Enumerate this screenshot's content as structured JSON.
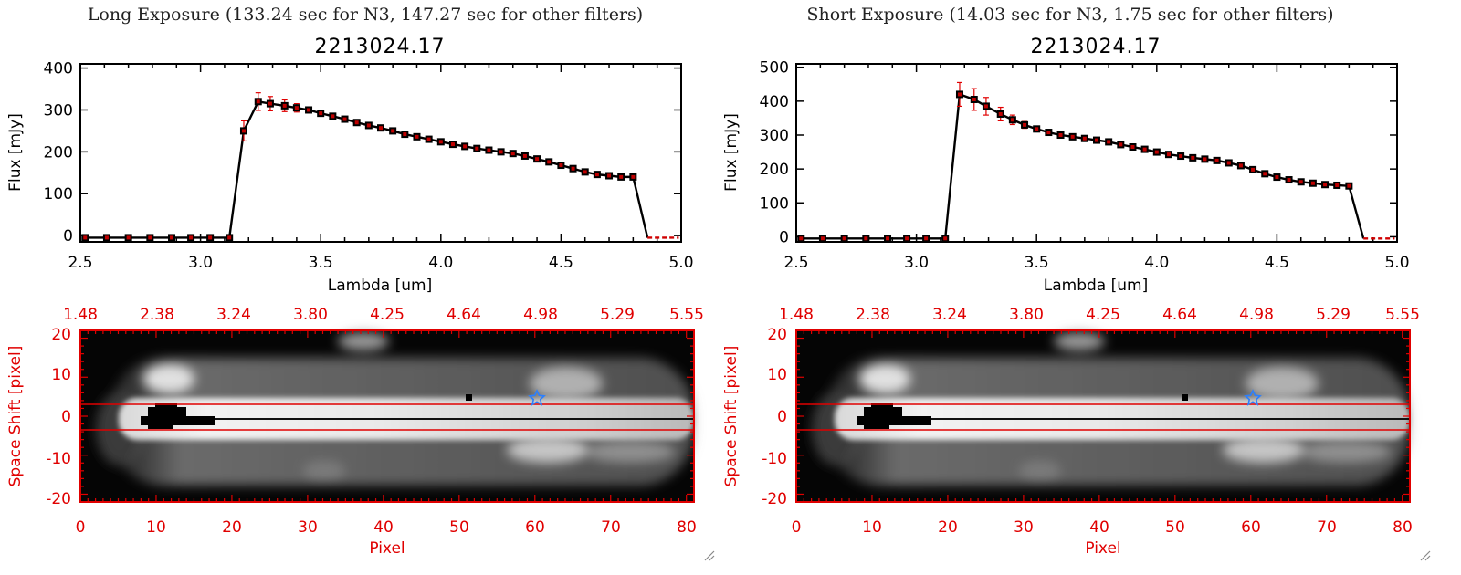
{
  "panels": [
    {
      "id": "long",
      "heading": "Long Exposure (133.24 sec for N3, 147.27 sec for other filters)",
      "spectrum": {
        "title": "2213024.17",
        "xlabel": "Lambda [um]",
        "ylabel": "Flux [mJy]",
        "xlim": [
          2.5,
          5.0
        ],
        "ylim": [
          -15,
          410
        ],
        "xticks": [
          "2.5",
          "3.0",
          "3.5",
          "4.0",
          "4.5",
          "5.0"
        ],
        "yticks": [
          "0",
          "100",
          "200",
          "300",
          "400"
        ]
      },
      "image": {
        "xlabel": "Pixel",
        "ylabel": "Space Shift [pixel]",
        "xticks": [
          "0",
          "10",
          "20",
          "30",
          "40",
          "50",
          "60",
          "70",
          "80"
        ],
        "yticks": [
          "20",
          "10",
          "0",
          "-10",
          "-20"
        ],
        "top_ticks": [
          "1.48",
          "2.38",
          "3.24",
          "3.80",
          "4.25",
          "4.64",
          "4.98",
          "5.29",
          "5.55"
        ]
      }
    },
    {
      "id": "short",
      "heading": "Short Exposure (14.03 sec for N3, 1.75 sec for other filters)",
      "spectrum": {
        "title": "2213024.17",
        "xlabel": "Lambda [um]",
        "ylabel": "Flux [mJy]",
        "xlim": [
          2.5,
          5.0
        ],
        "ylim": [
          -15,
          510
        ],
        "xticks": [
          "2.5",
          "3.0",
          "3.5",
          "4.0",
          "4.5",
          "5.0"
        ],
        "yticks": [
          "0",
          "100",
          "200",
          "300",
          "400",
          "500"
        ]
      },
      "image": {
        "xlabel": "Pixel",
        "ylabel": "Space Shift [pixel]",
        "xticks": [
          "0",
          "10",
          "20",
          "30",
          "40",
          "50",
          "60",
          "70",
          "80"
        ],
        "yticks": [
          "20",
          "10",
          "0",
          "-10",
          "-20"
        ],
        "top_ticks": [
          "1.48",
          "2.38",
          "3.24",
          "3.80",
          "4.25",
          "4.64",
          "4.98",
          "5.29",
          "5.55"
        ]
      }
    }
  ],
  "chart_data": [
    {
      "type": "line",
      "title": "2213024.17",
      "panel": "Long Exposure",
      "xlabel": "Lambda [um]",
      "ylabel": "Flux [mJy]",
      "xlim": [
        2.5,
        5.0
      ],
      "ylim": [
        -15,
        410
      ],
      "x": [
        2.52,
        2.61,
        2.7,
        2.79,
        2.88,
        2.96,
        3.04,
        3.12,
        3.18,
        3.24,
        3.29,
        3.35,
        3.4,
        3.45,
        3.5,
        3.55,
        3.6,
        3.65,
        3.7,
        3.75,
        3.8,
        3.85,
        3.9,
        3.95,
        4.0,
        4.05,
        4.1,
        4.15,
        4.2,
        4.25,
        4.3,
        4.35,
        4.4,
        4.45,
        4.5,
        4.55,
        4.6,
        4.65,
        4.7,
        4.75,
        4.8
      ],
      "y": [
        -5,
        -5,
        -5,
        -5,
        -5,
        -5,
        -5,
        -5,
        250,
        320,
        315,
        310,
        305,
        300,
        292,
        285,
        278,
        270,
        263,
        257,
        250,
        242,
        236,
        230,
        224,
        218,
        213,
        208,
        204,
        200,
        196,
        190,
        183,
        176,
        168,
        160,
        152,
        146,
        143,
        140,
        140
      ],
      "yerr": [
        0,
        0,
        0,
        0,
        0,
        0,
        0,
        0,
        24,
        21,
        17,
        14,
        10,
        7,
        6,
        5,
        5,
        5,
        4,
        4,
        4,
        4,
        4,
        4,
        4,
        4,
        4,
        4,
        4,
        4,
        4,
        4,
        4,
        4,
        4,
        4,
        4,
        4,
        4,
        4,
        4
      ],
      "tail": {
        "x": [
          4.86,
          4.99
        ],
        "y": [
          -5,
          -5
        ]
      }
    },
    {
      "type": "line",
      "title": "2213024.17",
      "panel": "Short Exposure",
      "xlabel": "Lambda [um]",
      "ylabel": "Flux [mJy]",
      "xlim": [
        2.5,
        5.0
      ],
      "ylim": [
        -15,
        510
      ],
      "x": [
        2.52,
        2.61,
        2.7,
        2.79,
        2.88,
        2.96,
        3.04,
        3.12,
        3.18,
        3.24,
        3.29,
        3.35,
        3.4,
        3.45,
        3.5,
        3.55,
        3.6,
        3.65,
        3.7,
        3.75,
        3.8,
        3.85,
        3.9,
        3.95,
        4.0,
        4.05,
        4.1,
        4.15,
        4.2,
        4.25,
        4.3,
        4.35,
        4.4,
        4.45,
        4.5,
        4.55,
        4.6,
        4.65,
        4.7,
        4.75,
        4.8
      ],
      "y": [
        -5,
        -5,
        -5,
        -5,
        -5,
        -5,
        -5,
        -5,
        420,
        405,
        385,
        362,
        345,
        330,
        318,
        308,
        300,
        295,
        290,
        285,
        280,
        272,
        265,
        258,
        250,
        243,
        238,
        233,
        229,
        225,
        218,
        210,
        198,
        186,
        176,
        168,
        162,
        158,
        154,
        152,
        150
      ],
      "yerr": [
        0,
        0,
        0,
        0,
        0,
        0,
        0,
        0,
        35,
        32,
        26,
        20,
        14,
        10,
        8,
        7,
        6,
        6,
        6,
        5,
        5,
        5,
        5,
        5,
        5,
        5,
        5,
        5,
        5,
        5,
        5,
        5,
        5,
        5,
        5,
        5,
        5,
        5,
        5,
        5,
        5
      ],
      "tail": {
        "x": [
          4.86,
          4.99
        ],
        "y": [
          -5,
          -5
        ]
      }
    },
    {
      "type": "heatmap",
      "panel": "Long Exposure",
      "xlabel": "Pixel",
      "ylabel": "Space Shift [pixel]",
      "xlim": [
        0,
        81
      ],
      "ylim": [
        -22,
        22
      ],
      "aperture": [
        -3,
        3
      ],
      "star": {
        "x": 60.5,
        "y": 4.5
      }
    },
    {
      "type": "heatmap",
      "panel": "Short Exposure",
      "xlabel": "Pixel",
      "ylabel": "Space Shift [pixel]",
      "xlim": [
        0,
        81
      ],
      "ylim": [
        -22,
        22
      ],
      "aperture": [
        -3,
        3
      ],
      "star": {
        "x": 60.5,
        "y": 4.5
      }
    }
  ]
}
